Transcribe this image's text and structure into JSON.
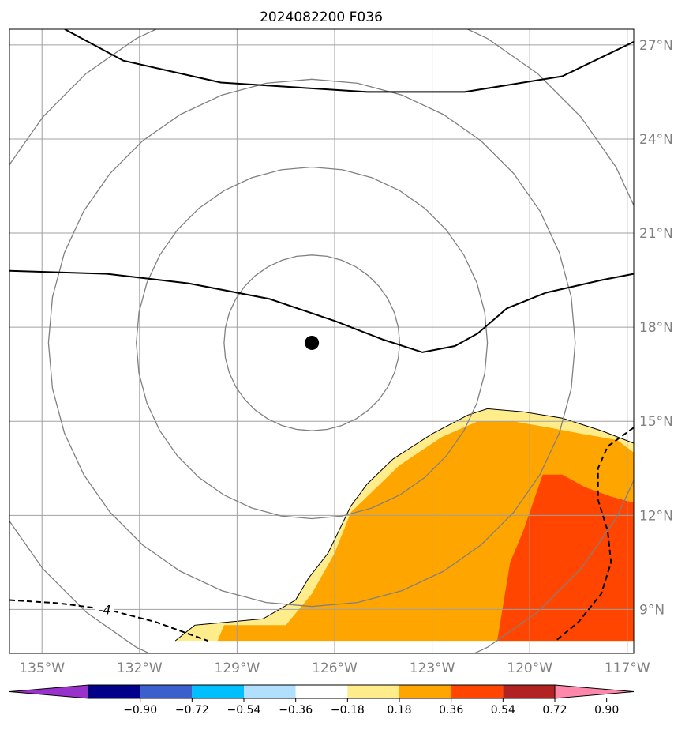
{
  "chart_data": {
    "type": "heatmap",
    "title": "2024082200 F036",
    "map": {
      "lon_range": [
        -136,
        -116.8
      ],
      "lat_range": [
        7.6,
        27.5
      ],
      "lon_ticks": [
        -135,
        -132,
        -129,
        -126,
        -123,
        -120,
        -117
      ],
      "lon_tick_labels": [
        "135°W",
        "132°W",
        "129°W",
        "126°W",
        "123°W",
        "120°W",
        "117°W"
      ],
      "lat_ticks": [
        9,
        12,
        15,
        18,
        21,
        24,
        27
      ],
      "lat_tick_labels": [
        "9°N",
        "12°N",
        "15°N",
        "18°N",
        "21°N",
        "24°N",
        "27°N"
      ],
      "grid": true,
      "center_marker": {
        "lon": -126.7,
        "lat": 17.5
      },
      "range_rings_deg": [
        2.7,
        5.4,
        8.1,
        10.8
      ]
    },
    "colorbar": {
      "levels": [
        -0.9,
        -0.72,
        -0.54,
        -0.36,
        -0.18,
        0.18,
        0.36,
        0.54,
        0.72,
        0.9
      ],
      "tick_labels": [
        "−0.90",
        "−0.72",
        "−0.54",
        "−0.36",
        "−0.18",
        "0.18",
        "0.36",
        "0.54",
        "0.72",
        "0.90"
      ],
      "colors": [
        "#9932cc",
        "#00008b",
        "#3b5fcd",
        "#00bfff",
        "#b0e0fe",
        "#ffffff",
        "#ffec8b",
        "#ffa500",
        "#ff4500",
        "#b22222",
        "#ff88aa"
      ],
      "extend": "both"
    },
    "shaded_regions": [
      {
        "level_min": 0.18,
        "color": "#ffec8b",
        "outline": [
          [
            -130.9,
            8.0
          ],
          [
            -130.3,
            8.5
          ],
          [
            -128.2,
            8.7
          ],
          [
            -127.2,
            9.3
          ],
          [
            -126.8,
            10.0
          ],
          [
            -126.2,
            10.8
          ],
          [
            -125.5,
            12.3
          ],
          [
            -125.0,
            13.0
          ],
          [
            -124.2,
            13.8
          ],
          [
            -123.0,
            14.6
          ],
          [
            -121.9,
            15.2
          ],
          [
            -121.3,
            15.4
          ],
          [
            -120.2,
            15.3
          ],
          [
            -119.0,
            15.1
          ],
          [
            -117.8,
            14.7
          ],
          [
            -116.8,
            14.3
          ],
          [
            -116.8,
            8.0
          ]
        ]
      },
      {
        "level_min": 0.36,
        "color": "#ffa500",
        "outline": [
          [
            -129.6,
            8.0
          ],
          [
            -129.4,
            8.5
          ],
          [
            -127.5,
            8.5
          ],
          [
            -126.7,
            9.5
          ],
          [
            -126.0,
            10.8
          ],
          [
            -125.5,
            12.1
          ],
          [
            -124.8,
            12.8
          ],
          [
            -124.0,
            13.6
          ],
          [
            -122.7,
            14.5
          ],
          [
            -121.6,
            15.0
          ],
          [
            -120.5,
            15.0
          ],
          [
            -119.4,
            14.8
          ],
          [
            -118.4,
            14.6
          ],
          [
            -117.3,
            14.4
          ],
          [
            -116.8,
            14.0
          ],
          [
            -116.8,
            8.0
          ]
        ]
      },
      {
        "level_min": 0.54,
        "color": "#ff4500",
        "outline": [
          [
            -121.0,
            8.0
          ],
          [
            -120.6,
            10.5
          ],
          [
            -120.2,
            11.5
          ],
          [
            -119.8,
            12.7
          ],
          [
            -119.6,
            13.3
          ],
          [
            -119.0,
            13.3
          ],
          [
            -118.3,
            12.9
          ],
          [
            -117.5,
            12.6
          ],
          [
            -116.8,
            12.4
          ],
          [
            -116.8,
            8.0
          ]
        ]
      }
    ],
    "contours": [
      {
        "style": "solid",
        "points": [
          [
            -134.3,
            27.5
          ],
          [
            -132.5,
            26.5
          ],
          [
            -129.5,
            25.8
          ],
          [
            -125.0,
            25.5
          ],
          [
            -122.0,
            25.5
          ],
          [
            -119.0,
            26.0
          ],
          [
            -116.8,
            27.1
          ]
        ]
      },
      {
        "style": "solid",
        "points": [
          [
            -136,
            19.8
          ],
          [
            -133.0,
            19.7
          ],
          [
            -130.5,
            19.4
          ],
          [
            -128.0,
            18.9
          ],
          [
            -126.0,
            18.2
          ],
          [
            -124.5,
            17.6
          ],
          [
            -123.3,
            17.2
          ],
          [
            -122.3,
            17.4
          ],
          [
            -121.6,
            17.8
          ],
          [
            -120.7,
            18.6
          ],
          [
            -119.5,
            19.1
          ],
          [
            -117.8,
            19.5
          ],
          [
            -116.8,
            19.7
          ]
        ]
      },
      {
        "style": "dashed",
        "label": "-4",
        "points": [
          [
            -136,
            9.3
          ],
          [
            -134.5,
            9.2
          ],
          [
            -133.0,
            9.0
          ],
          [
            -131.5,
            8.6
          ],
          [
            -129.9,
            8.0
          ]
        ]
      },
      {
        "style": "dashed",
        "points": [
          [
            -116.8,
            14.8
          ],
          [
            -117.6,
            14.2
          ],
          [
            -117.9,
            13.5
          ],
          [
            -117.9,
            12.5
          ],
          [
            -117.6,
            11.5
          ],
          [
            -117.5,
            10.5
          ],
          [
            -117.8,
            9.5
          ],
          [
            -118.5,
            8.6
          ],
          [
            -119.2,
            8.0
          ]
        ]
      }
    ],
    "annotations": [
      "-4"
    ]
  }
}
